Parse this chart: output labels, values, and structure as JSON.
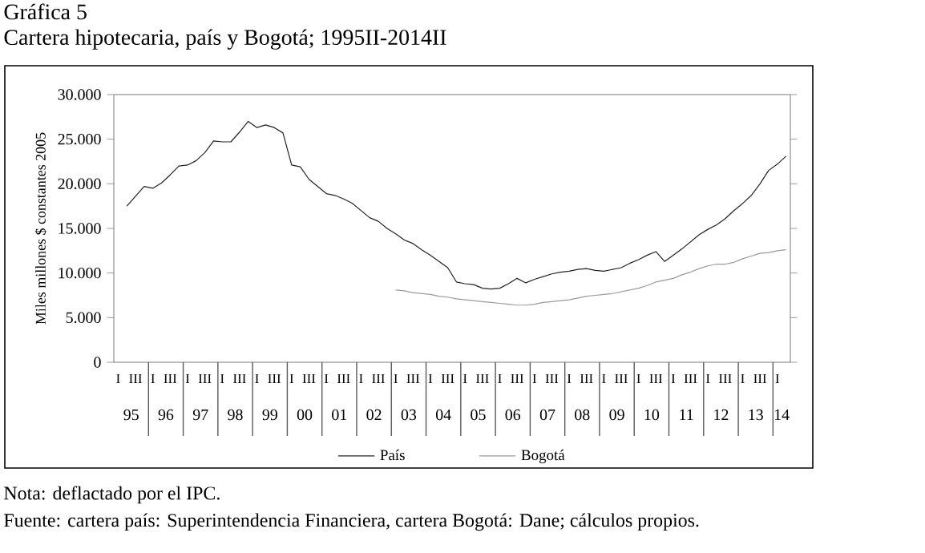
{
  "chart_data": {
    "type": "line",
    "title": "Gráfica 5",
    "subtitle": "Cartera hipotecaria, país y Bogotá; 1995II-2014II",
    "ylabel": "Miles millones $ constantes 2005",
    "annotations": [
      "95",
      "96",
      "97",
      "98",
      "99",
      "00",
      "01",
      "02",
      "03",
      "04",
      "05",
      "06",
      "07",
      "08",
      "09",
      "10",
      "11",
      "12",
      "13",
      "14",
      "Nota: deflactado por el IPC.",
      "Fuente: cartera país: Superintendencia Financiera, cartera Bogotá: Dane; cálculos propios."
    ],
    "categories": [
      "I",
      null,
      "III",
      null,
      "I",
      null,
      "III",
      null,
      "I",
      null,
      "III",
      null,
      "I",
      null,
      "III",
      null,
      "I",
      null,
      "III",
      null,
      "I",
      null,
      "III",
      null,
      "I",
      null,
      "III",
      null,
      "I",
      null,
      "III",
      null,
      "I",
      null,
      "III",
      null,
      "I",
      null,
      "III",
      null,
      "I",
      null,
      "III",
      null,
      "I",
      null,
      "III",
      null,
      "I",
      null,
      "III",
      null,
      "I",
      null,
      "III",
      null,
      "I",
      null,
      "III",
      null,
      "I",
      null,
      "III",
      null,
      "I",
      null,
      "III",
      null,
      "I",
      null,
      "III",
      null,
      "I",
      null,
      "III",
      null,
      "I",
      null
    ],
    "series": [
      {
        "name": "País",
        "color": "#222222",
        "values": [
          null,
          17500,
          18600,
          19700,
          19500,
          20100,
          21000,
          22000,
          22100,
          22600,
          23500,
          24800,
          24700,
          24700,
          25800,
          27000,
          26300,
          26600,
          26300,
          25700,
          22100,
          21900,
          20500,
          19700,
          18900,
          18700,
          18300,
          17800,
          17000,
          16200,
          15800,
          15000,
          14400,
          13700,
          13300,
          12600,
          12000,
          11300,
          10600,
          9000,
          8800,
          8700,
          8300,
          8200,
          8300,
          8800,
          9400,
          8900,
          9300,
          9600,
          9900,
          10100,
          10200,
          10400,
          10500,
          10300,
          10200,
          10400,
          10600,
          11100,
          11500,
          12000,
          12400,
          11300,
          12000,
          12700,
          13500,
          14300,
          14900,
          15400,
          16100,
          17000,
          17800,
          18700,
          20000,
          21500,
          22200,
          23100
        ]
      },
      {
        "name": "Bogotá",
        "color": "#9a9a9a",
        "values": [
          null,
          null,
          null,
          null,
          null,
          null,
          null,
          null,
          null,
          null,
          null,
          null,
          null,
          null,
          null,
          null,
          null,
          null,
          null,
          null,
          null,
          null,
          null,
          null,
          null,
          null,
          null,
          null,
          null,
          null,
          null,
          null,
          8100,
          8000,
          7800,
          7700,
          7600,
          7400,
          7300,
          7100,
          7000,
          6900,
          6800,
          6700,
          6600,
          6500,
          6400,
          6400,
          6500,
          6700,
          6800,
          6900,
          7000,
          7200,
          7400,
          7500,
          7600,
          7700,
          7900,
          8100,
          8300,
          8600,
          9000,
          9200,
          9400,
          9800,
          10100,
          10500,
          10800,
          11000,
          11000,
          11200,
          11600,
          11900,
          12200,
          12300,
          12500,
          12600
        ]
      }
    ],
    "ylim": [
      0,
      30000
    ],
    "yticks": [
      {
        "value": 0,
        "label": "0"
      },
      {
        "value": 5000,
        "label": "5.000"
      },
      {
        "value": 10000,
        "label": "10.000"
      },
      {
        "value": 15000,
        "label": "15.000"
      },
      {
        "value": 20000,
        "label": "20.000"
      },
      {
        "value": 25000,
        "label": "25.000"
      },
      {
        "value": 30000,
        "label": "30.000"
      }
    ],
    "legend": "bottom"
  }
}
